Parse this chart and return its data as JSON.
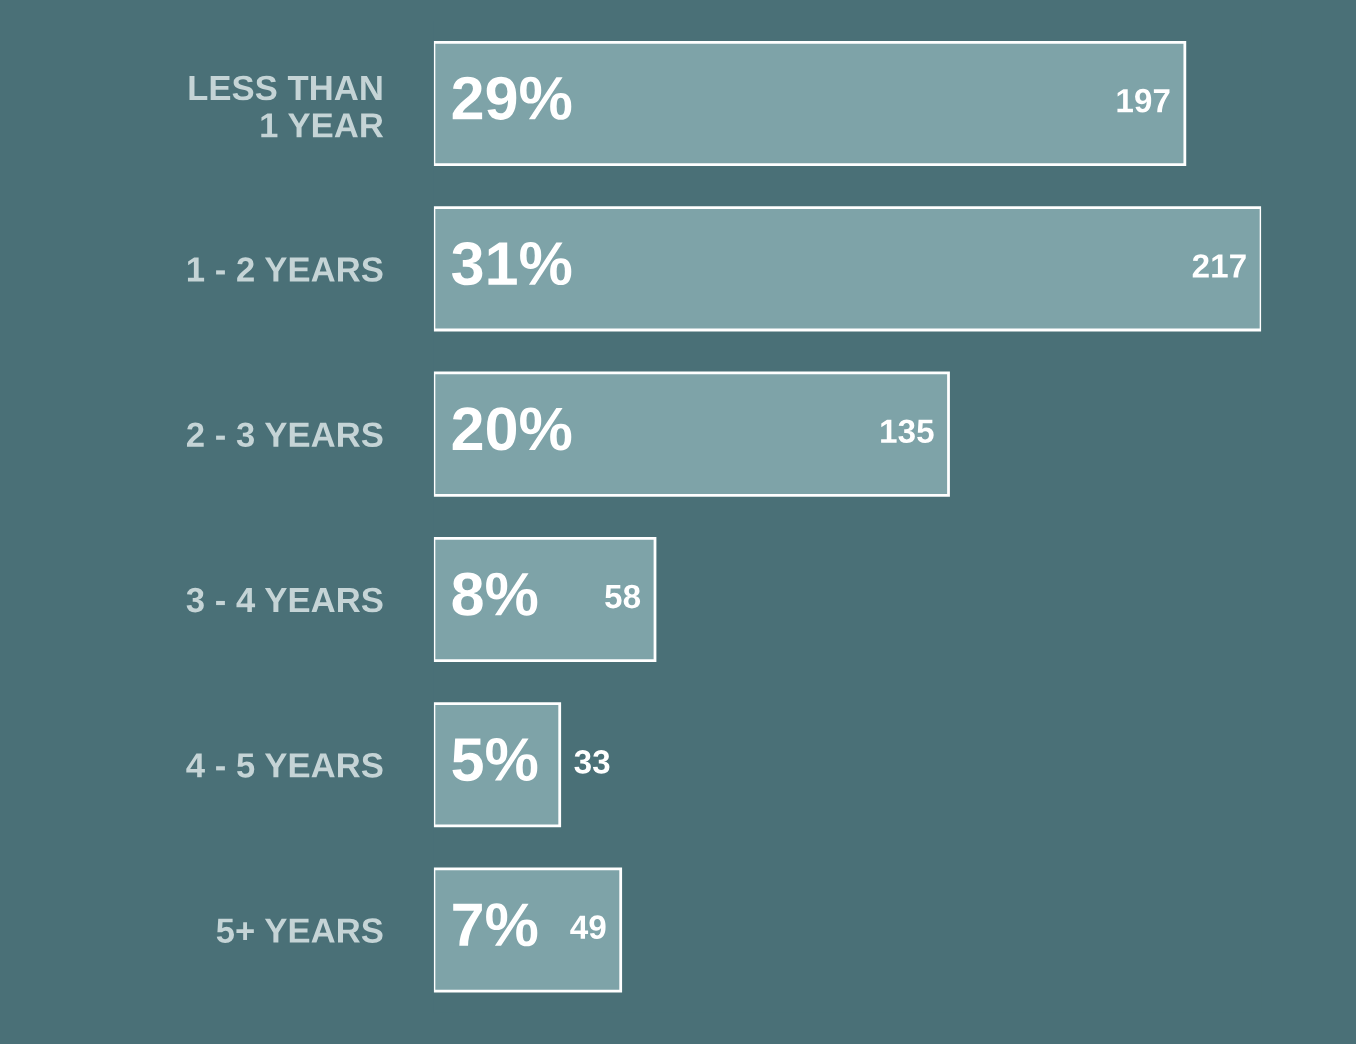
{
  "chart_data": {
    "type": "bar",
    "orientation": "horizontal",
    "categories": [
      "LESS THAN\n1 YEAR",
      "1 - 2 YEARS",
      "2 - 3 YEARS",
      "3 - 4 YEARS",
      "4 - 5 YEARS",
      "5+ YEARS"
    ],
    "values": [
      197,
      217,
      135,
      58,
      33,
      49
    ],
    "color": "#7ea3a8",
    "data_labels": true,
    "annotations": [
      {
        "text": "29%",
        "y": "LESS THAN\n1 YEAR"
      },
      {
        "text": "31%",
        "y": "1 - 2 YEARS"
      },
      {
        "text": "20%",
        "y": "2 - 3 YEARS"
      },
      {
        "text": "8%",
        "y": "3 - 4 YEARS"
      },
      {
        "text": "5%",
        "y": "4 - 5 YEARS"
      },
      {
        "text": "7%",
        "y": "5+ YEARS"
      }
    ],
    "tick_labels": "y",
    "grid": false,
    "legend": false
  }
}
